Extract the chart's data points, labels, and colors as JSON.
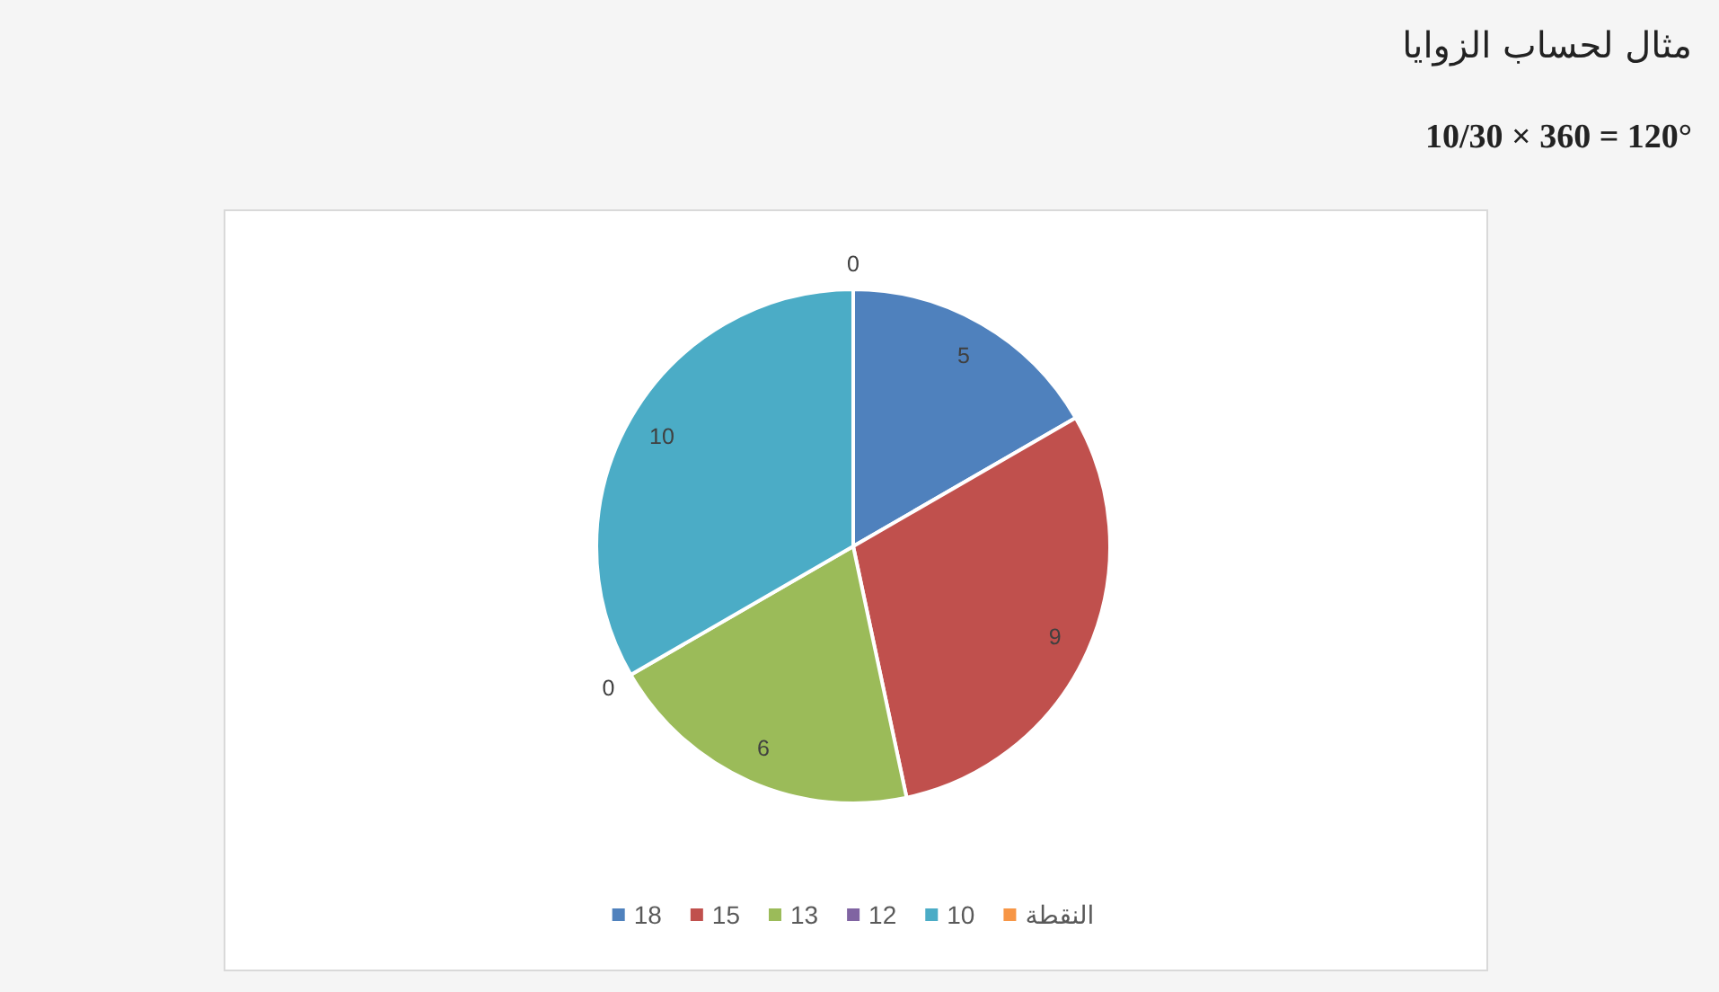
{
  "chart_data": {
    "type": "pie",
    "title": "مثال لحساب الزوايا",
    "annotations": [
      "10/30 × 360 = 120°"
    ],
    "categories": [
      "18",
      "15",
      "13",
      "12",
      "10",
      "النقطة"
    ],
    "values": [
      5,
      9,
      6,
      0,
      10,
      0
    ],
    "value_labels": [
      "5",
      "9",
      "6",
      "0",
      "10",
      "0"
    ],
    "colors": [
      "#4f81bd",
      "#c0504d",
      "#9bbb59",
      "#8064a2",
      "#4bacc6",
      "#f79646"
    ],
    "legend": "bottom"
  }
}
